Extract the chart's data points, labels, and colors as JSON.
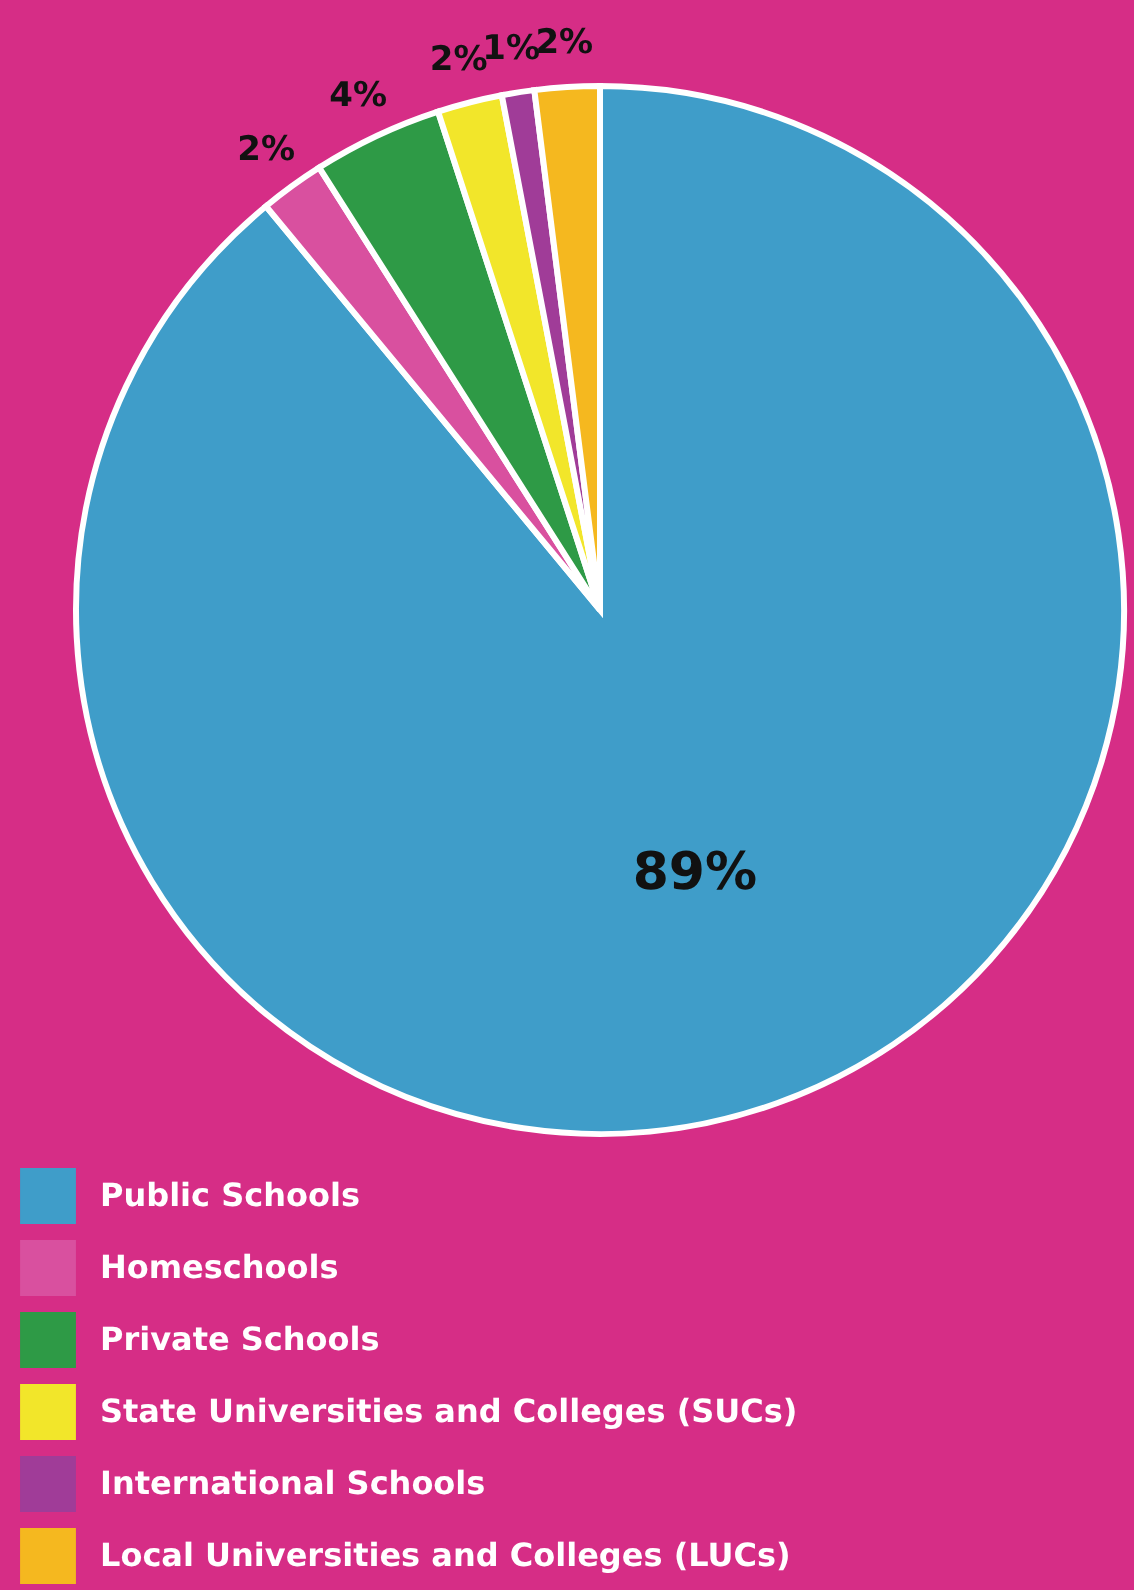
{
  "chart_data": {
    "type": "pie",
    "categories": [
      "Public Schools",
      "Homeschools",
      "Private Schools",
      "State Universities and Colleges (SUCs)",
      "International Schools",
      "Local Universities and Colleges (LUCs)"
    ],
    "values": [
      89,
      2,
      4,
      2,
      1,
      2
    ],
    "colors": [
      "#3f9dc9",
      "#d9509f",
      "#2e9a46",
      "#f2e62a",
      "#a03c98",
      "#f5b81f"
    ],
    "value_labels": [
      "89%",
      "2%",
      "4%",
      "2%",
      "1%",
      "2%"
    ],
    "legend": "bottom left"
  }
}
